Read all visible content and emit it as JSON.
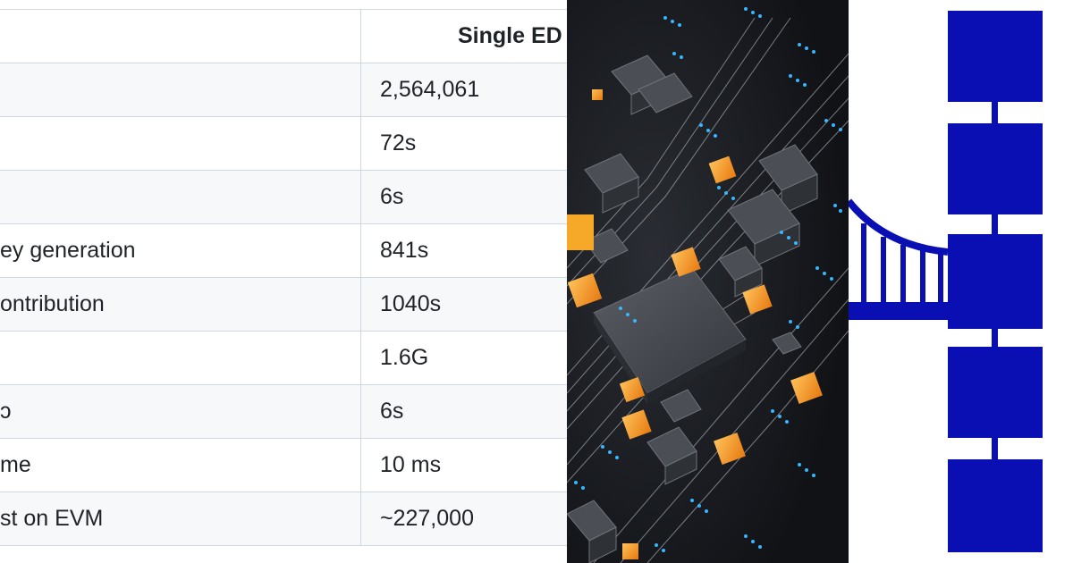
{
  "table": {
    "header": {
      "left": "",
      "right": "Single ED"
    },
    "rows": [
      {
        "left": "",
        "right": "2,564,061"
      },
      {
        "left": "",
        "right": "72s"
      },
      {
        "left": "",
        "right": "6s"
      },
      {
        "left": "ey generation",
        "right": "841s"
      },
      {
        "left": "ontribution",
        "right": "1040s"
      },
      {
        "left": "",
        "right": "1.6G"
      },
      {
        "left": "ɔ",
        "right": "6s"
      },
      {
        "left": "me",
        "right": "10 ms"
      },
      {
        "left": "st on EVM",
        "right": "~227,000"
      }
    ]
  },
  "photo": {
    "subject": "circuit-board-chips"
  },
  "logo": {
    "subject": "bridge-to-blockchain",
    "color": "#0a0fb4"
  },
  "colors": {
    "table_border": "#d0d7de",
    "table_alt_row": "#f6f8fa",
    "table_text": "#1f2328",
    "chip_glow": "#f39a1d",
    "trace_blue": "#38b6ff"
  }
}
